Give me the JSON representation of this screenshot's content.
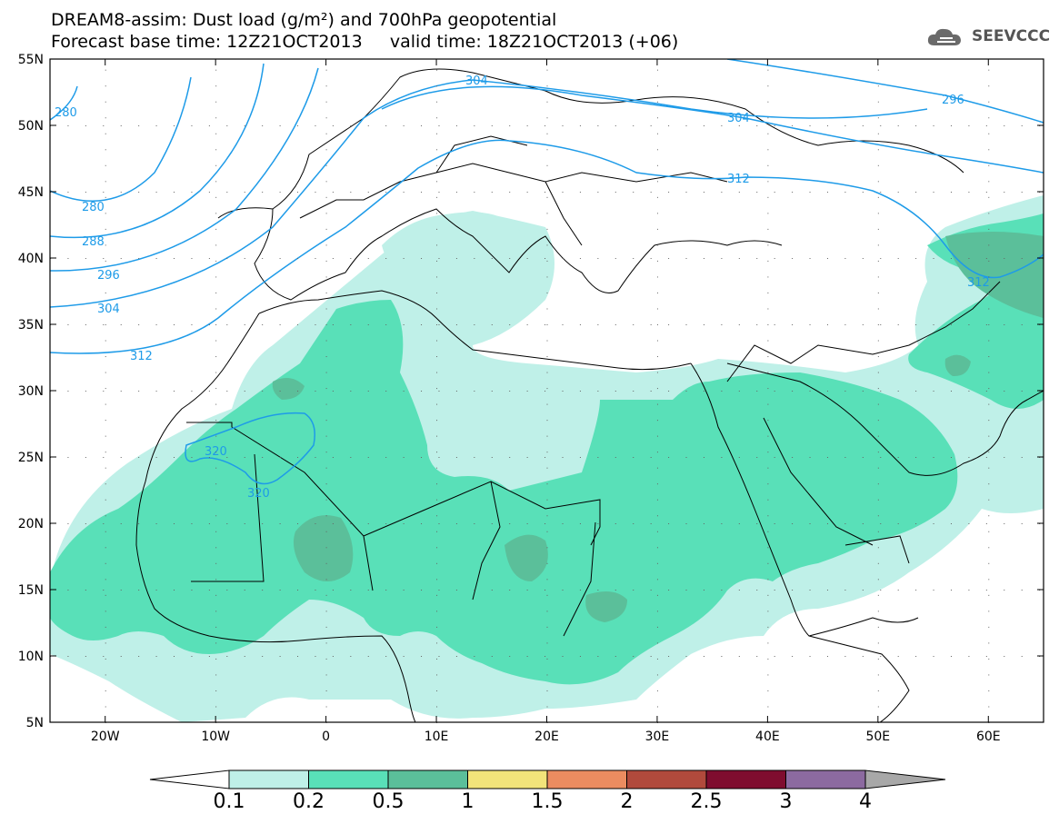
{
  "header": {
    "title_line1": "DREAM8-assim: Dust load (g/m²) and 700hPa geopotential",
    "title_line2": "Forecast base time: 12Z21OCT2013     valid time: 18Z21OCT2013 (+06)",
    "logo_text": "SEEVCCC",
    "logo_icon": "cloud-icon"
  },
  "map": {
    "lat_labels": [
      "55N",
      "50N",
      "45N",
      "40N",
      "35N",
      "30N",
      "25N",
      "20N",
      "15N",
      "10N",
      "5N"
    ],
    "lon_labels": [
      "20W",
      "10W",
      "0",
      "10E",
      "20E",
      "30E",
      "40E",
      "50E",
      "60E"
    ],
    "contour_labels": [
      "280",
      "280",
      "288",
      "296",
      "304",
      "312",
      "304",
      "304",
      "296",
      "312",
      "312",
      "320",
      "320"
    ],
    "contour_line_color": "#1e9be8"
  },
  "legend": {
    "values": [
      "0.1",
      "0.2",
      "0.5",
      "1",
      "1.5",
      "2",
      "2.5",
      "3",
      "4"
    ],
    "colors": [
      "#ffffff",
      "#bff0e8",
      "#59e0b8",
      "#5bbf9a",
      "#f2e47a",
      "#eb8c60",
      "#b14a3c",
      "#7f0d2f",
      "#8c6aa0",
      "#a8a8a8"
    ]
  }
}
